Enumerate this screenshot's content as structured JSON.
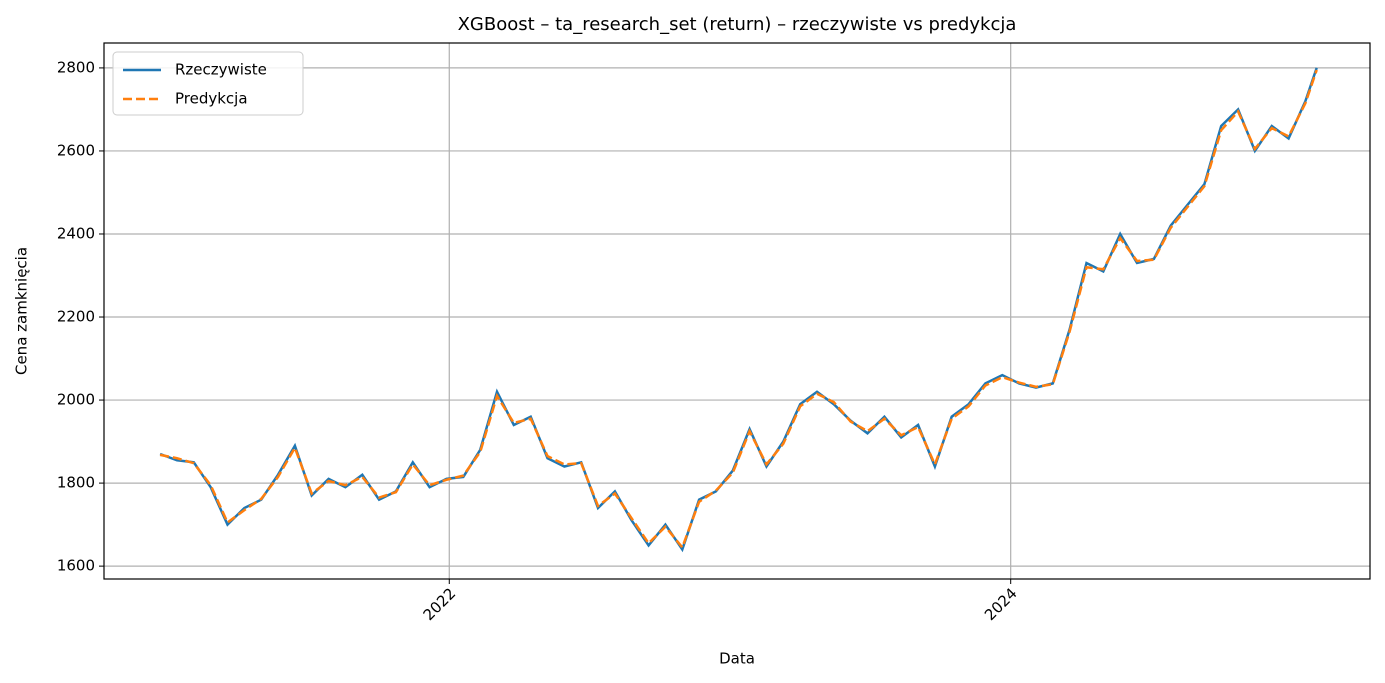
{
  "chart_data": {
    "type": "line",
    "title": "XGBoost – ta_research_set (return) – rzeczywiste vs predykcja",
    "x_label": "Data",
    "y_label": "Cena zamknięcia",
    "x": [
      2020.97,
      2021.03,
      2021.09,
      2021.15,
      2021.21,
      2021.27,
      2021.33,
      2021.39,
      2021.45,
      2021.51,
      2021.57,
      2021.63,
      2021.69,
      2021.75,
      2021.81,
      2021.87,
      2021.93,
      2021.99,
      2022.05,
      2022.11,
      2022.17,
      2022.23,
      2022.29,
      2022.35,
      2022.41,
      2022.47,
      2022.53,
      2022.59,
      2022.65,
      2022.71,
      2022.77,
      2022.83,
      2022.89,
      2022.95,
      2023.01,
      2023.07,
      2023.13,
      2023.19,
      2023.25,
      2023.31,
      2023.37,
      2023.43,
      2023.49,
      2023.55,
      2023.61,
      2023.67,
      2023.73,
      2023.79,
      2023.85,
      2023.91,
      2023.97,
      2024.03,
      2024.09,
      2024.15,
      2024.21,
      2024.27,
      2024.33,
      2024.39,
      2024.45,
      2024.51,
      2024.57,
      2024.63,
      2024.69,
      2024.75,
      2024.81,
      2024.87,
      2024.93,
      2024.99,
      2025.05,
      2025.09
    ],
    "series": [
      {
        "name": "Rzeczywiste",
        "color": "#1f77b4",
        "dash": false,
        "values": [
          1870,
          1855,
          1850,
          1790,
          1700,
          1740,
          1760,
          1820,
          1890,
          1770,
          1810,
          1790,
          1820,
          1760,
          1780,
          1850,
          1790,
          1810,
          1815,
          1880,
          2020,
          1940,
          1960,
          1860,
          1840,
          1850,
          1740,
          1780,
          1710,
          1650,
          1700,
          1640,
          1760,
          1780,
          1830,
          1930,
          1840,
          1900,
          1990,
          2020,
          1990,
          1950,
          1920,
          1960,
          1910,
          1940,
          1840,
          1960,
          1990,
          2040,
          2060,
          2040,
          2030,
          2040,
          2170,
          2330,
          2310,
          2400,
          2330,
          2340,
          2420,
          2470,
          2520,
          2660,
          2700,
          2600,
          2660,
          2630,
          2720,
          2800
        ]
      },
      {
        "name": "Predykcja",
        "color": "#ff7f0e",
        "dash": true,
        "values": [
          1868,
          1860,
          1848,
          1795,
          1705,
          1735,
          1762,
          1815,
          1885,
          1775,
          1805,
          1795,
          1815,
          1765,
          1778,
          1845,
          1795,
          1808,
          1818,
          1875,
          2010,
          1945,
          1955,
          1865,
          1845,
          1848,
          1745,
          1775,
          1715,
          1655,
          1695,
          1645,
          1755,
          1782,
          1825,
          1925,
          1845,
          1895,
          1985,
          2015,
          1995,
          1948,
          1925,
          1955,
          1915,
          1935,
          1845,
          1955,
          1985,
          2035,
          2055,
          2042,
          2032,
          2038,
          2165,
          2320,
          2315,
          2390,
          2335,
          2338,
          2415,
          2465,
          2515,
          2650,
          2695,
          2605,
          2655,
          2635,
          2715,
          2795
        ]
      }
    ],
    "xlim": [
      2020.77,
      2025.28
    ],
    "xticks": [
      2022,
      2024
    ],
    "ylim": [
      1569,
      2860
    ],
    "yticks": [
      1600,
      1800,
      2000,
      2200,
      2400,
      2600,
      2800
    ],
    "grid": true,
    "legend": "upper left"
  }
}
